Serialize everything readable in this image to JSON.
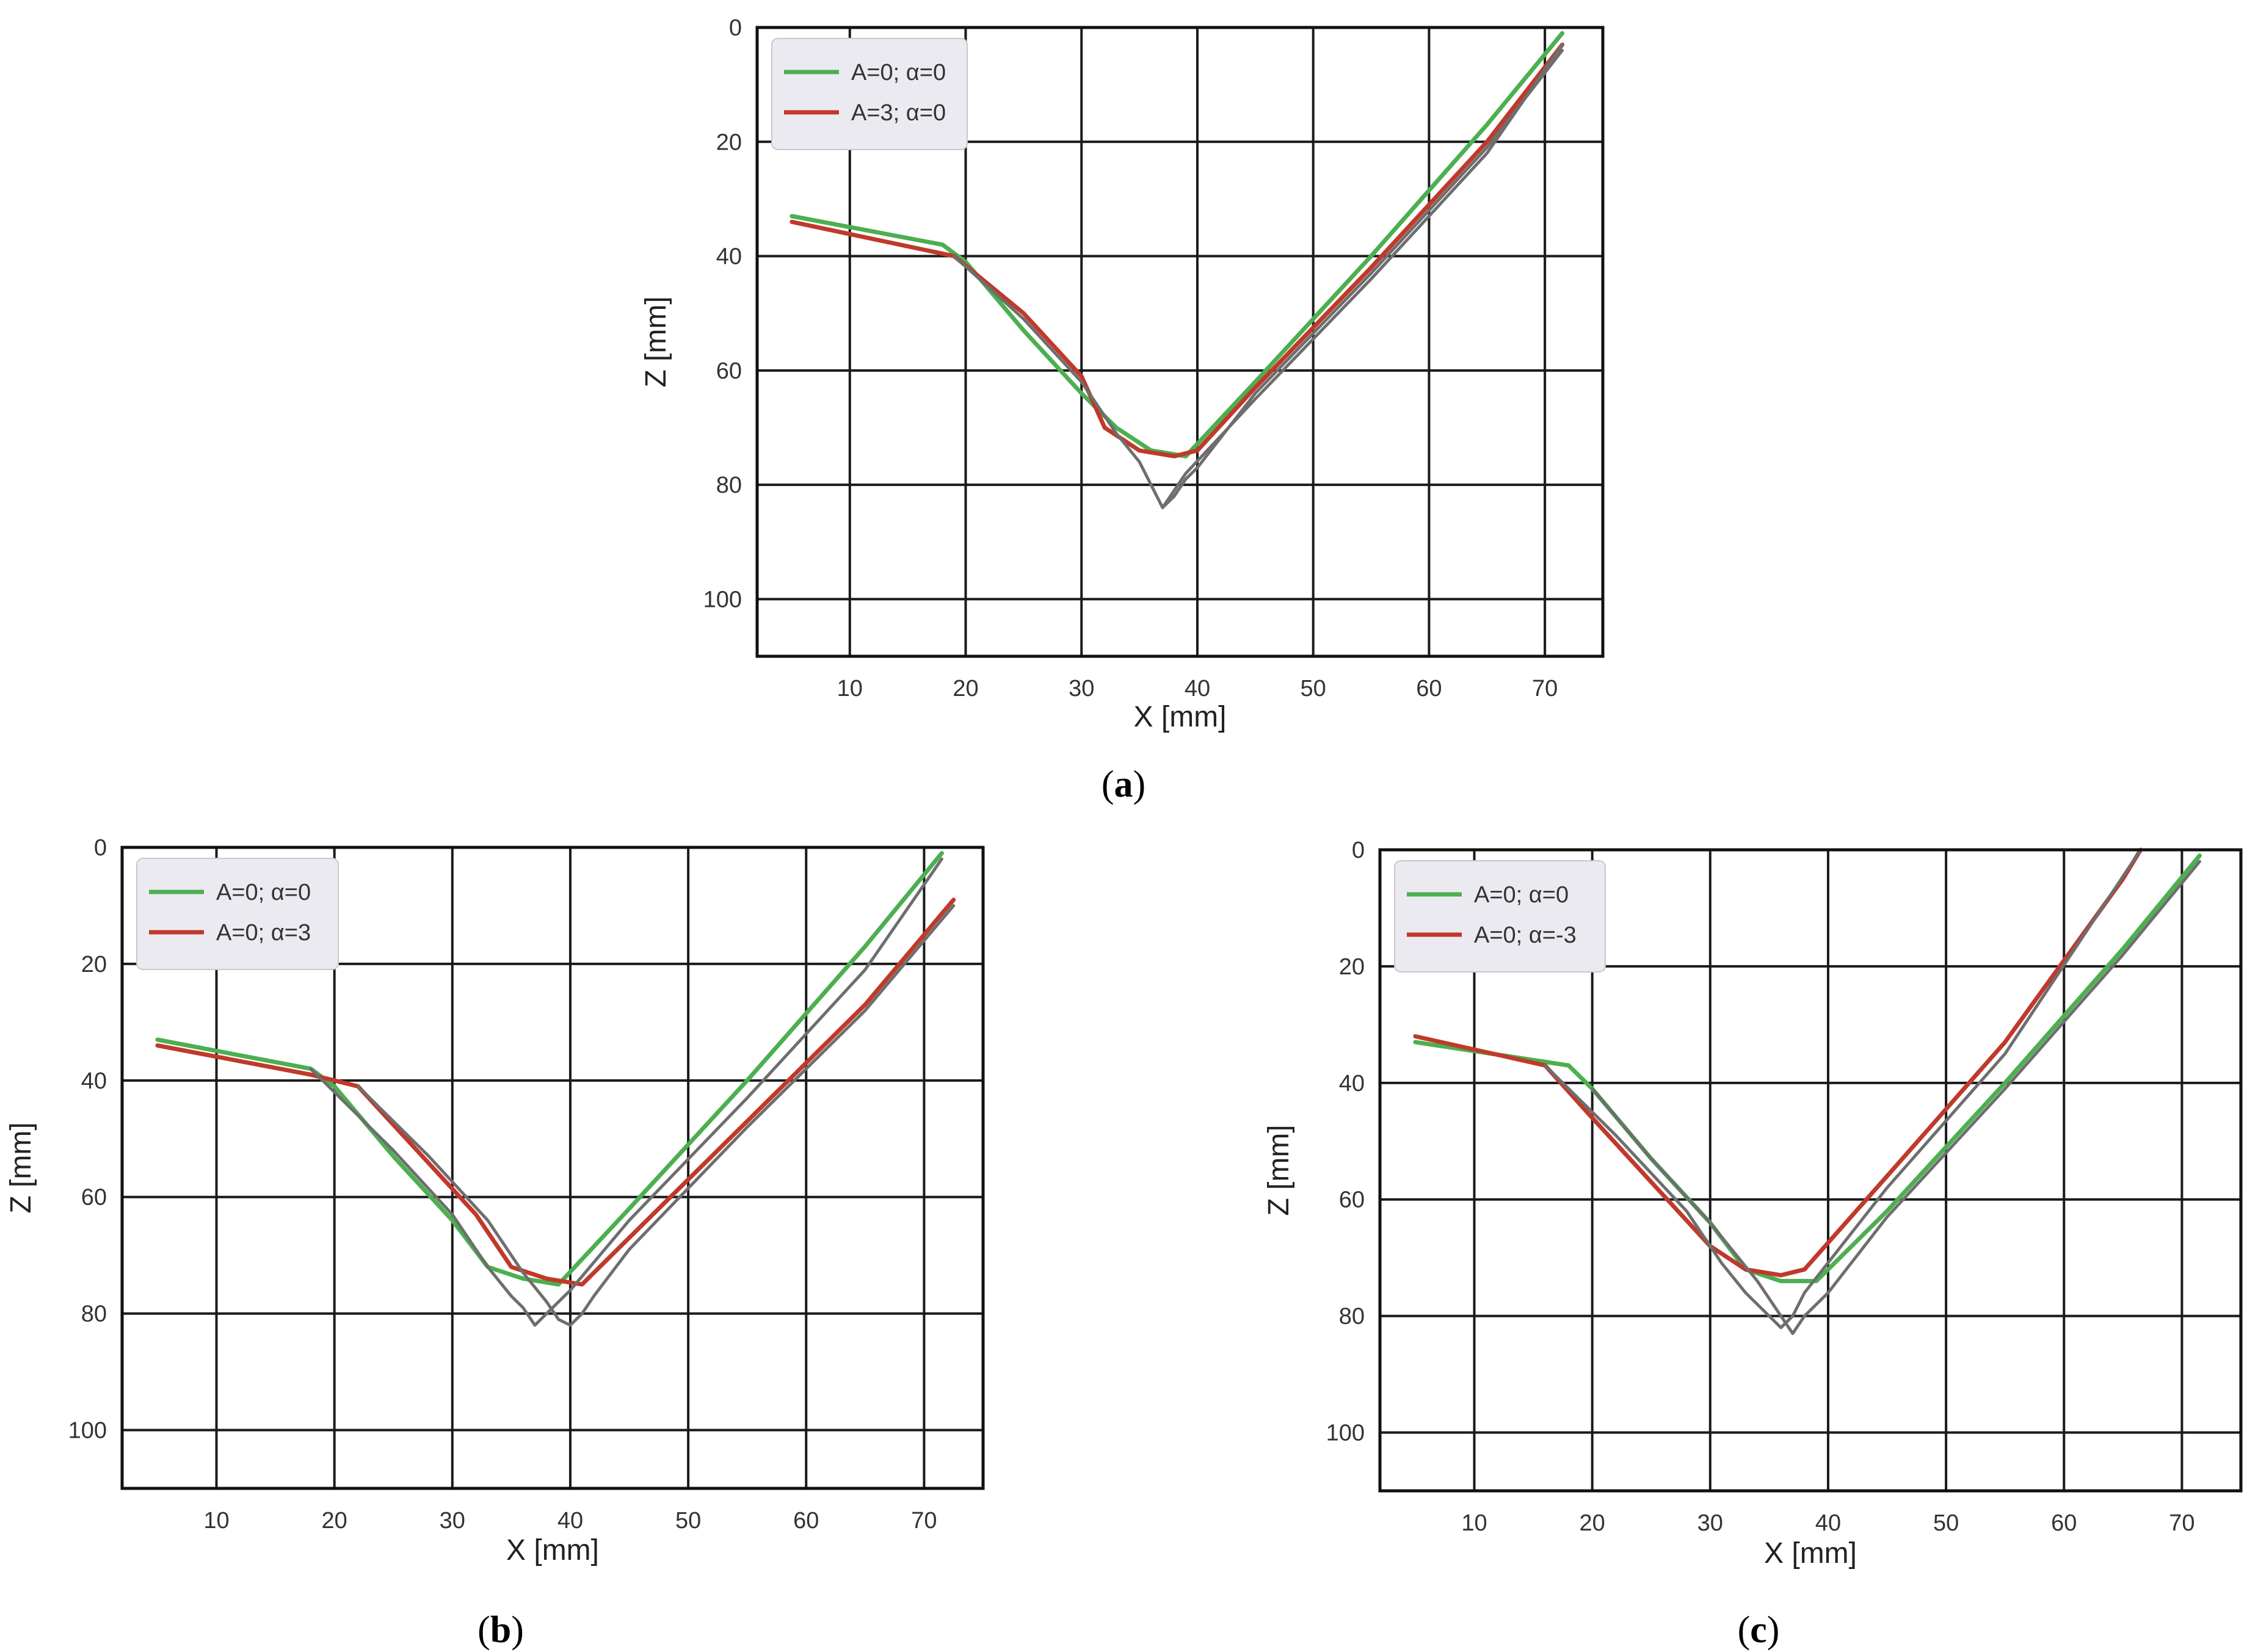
{
  "chart_data": [
    {
      "type": "line",
      "panel_label": "a",
      "xlabel": "X [mm]",
      "ylabel": "Z [mm]",
      "xticks": [
        10,
        20,
        30,
        40,
        50,
        60,
        70
      ],
      "yticks": [
        0,
        20,
        40,
        60,
        80,
        100
      ],
      "xlim": [
        2,
        75
      ],
      "ylim": [
        0,
        110
      ],
      "y_inverted": true,
      "grid": true,
      "legend_position": "upper-left",
      "series": [
        {
          "name": "A=0; α=0",
          "color": "#4caf50",
          "x": [
            5,
            18,
            20,
            25,
            30,
            33,
            36,
            39,
            45,
            55,
            65,
            71.5
          ],
          "y": [
            33,
            38,
            41,
            53,
            64,
            70,
            74,
            75,
            62,
            40,
            17,
            1
          ]
        },
        {
          "name": "A=3; α=0",
          "color": "#c0392b",
          "x": [
            5,
            19,
            25,
            30,
            32,
            35,
            38,
            40,
            45,
            55,
            65,
            71.5
          ],
          "y": [
            34,
            40,
            50,
            61,
            70,
            74,
            75,
            74,
            63,
            42,
            20,
            3
          ]
        },
        {
          "name": "",
          "color": "#6e6e6e",
          "x": [
            19,
            25,
            30,
            33,
            35,
            36,
            37,
            38,
            39,
            40,
            45,
            55,
            65,
            71.5
          ],
          "y": [
            40,
            51,
            62,
            71,
            76,
            80,
            84,
            82,
            79,
            77,
            64,
            43,
            21,
            4
          ]
        },
        {
          "name": "",
          "color": "#6e6e6e",
          "x": [
            37,
            39,
            45,
            55,
            65,
            71.5
          ],
          "y": [
            84,
            78,
            65,
            44,
            22,
            3
          ]
        }
      ]
    },
    {
      "type": "line",
      "panel_label": "b",
      "xlabel": "X [mm]",
      "ylabel": "Z [mm]",
      "xticks": [
        10,
        20,
        30,
        40,
        50,
        60,
        70
      ],
      "yticks": [
        0,
        20,
        40,
        60,
        80,
        100
      ],
      "xlim": [
        2,
        75
      ],
      "ylim": [
        0,
        110
      ],
      "y_inverted": true,
      "grid": true,
      "legend_position": "upper-left",
      "series": [
        {
          "name": "A=0; α=0",
          "color": "#4caf50",
          "x": [
            5,
            18,
            20,
            25,
            30,
            33,
            36,
            39,
            45,
            55,
            65,
            71.5
          ],
          "y": [
            33,
            38,
            41,
            53,
            64,
            72,
            74,
            75,
            62,
            40,
            17,
            1
          ]
        },
        {
          "name": "A=0; α=3",
          "color": "#c0392b",
          "x": [
            5,
            18,
            22,
            27,
            32,
            35,
            38,
            41,
            45,
            55,
            65,
            72.5
          ],
          "y": [
            34,
            39,
            41,
            52,
            63,
            72,
            74,
            75,
            67,
            47,
            27,
            9
          ]
        },
        {
          "name": "",
          "color": "#6e6e6e",
          "x": [
            18,
            25,
            30,
            33,
            35,
            36,
            37,
            38,
            39,
            40,
            45,
            55,
            65,
            71.5
          ],
          "y": [
            38,
            52,
            63,
            72,
            77,
            79,
            82,
            80,
            78,
            76,
            64,
            43,
            21,
            2
          ]
        },
        {
          "name": "",
          "color": "#6e6e6e",
          "x": [
            22,
            28,
            33,
            36,
            38,
            39,
            40,
            41,
            42,
            45,
            55,
            65,
            72.5
          ],
          "y": [
            41,
            53,
            64,
            73,
            78,
            81,
            82,
            80,
            77,
            69,
            48,
            28,
            10
          ]
        }
      ]
    },
    {
      "type": "line",
      "panel_label": "c",
      "xlabel": "X [mm]",
      "ylabel": "Z [mm]",
      "xticks": [
        10,
        20,
        30,
        40,
        50,
        60,
        70
      ],
      "yticks": [
        0,
        20,
        40,
        60,
        80,
        100
      ],
      "xlim": [
        2,
        75
      ],
      "ylim": [
        0,
        110
      ],
      "y_inverted": true,
      "grid": true,
      "legend_position": "upper-left",
      "series": [
        {
          "name": "A=0; α=0",
          "color": "#4caf50",
          "x": [
            5,
            18,
            20,
            25,
            30,
            33,
            36,
            39,
            45,
            55,
            65,
            71.5
          ],
          "y": [
            33,
            37,
            41,
            53,
            64,
            72,
            74,
            74,
            62,
            40,
            17,
            1
          ]
        },
        {
          "name": "A=0; α=-3",
          "color": "#c0392b",
          "x": [
            5,
            16,
            20,
            25,
            30,
            33,
            36,
            38,
            45,
            55,
            65,
            66.5
          ],
          "y": [
            32,
            37,
            46,
            57,
            68,
            72,
            73,
            72,
            56,
            33,
            5,
            0
          ]
        },
        {
          "name": "",
          "color": "#6e6e6e",
          "x": [
            16,
            22,
            28,
            31,
            33,
            35,
            36,
            37,
            38,
            45,
            55,
            66.5
          ],
          "y": [
            37,
            49,
            62,
            71,
            76,
            80,
            82,
            80,
            76,
            58,
            35,
            0
          ]
        },
        {
          "name": "",
          "color": "#6e6e6e",
          "x": [
            20,
            25,
            30,
            34,
            36,
            37,
            38,
            40,
            45,
            55,
            65,
            71.5
          ],
          "y": [
            41,
            53,
            64,
            74,
            80,
            83,
            80,
            76,
            63,
            41,
            18,
            2
          ]
        }
      ]
    }
  ]
}
